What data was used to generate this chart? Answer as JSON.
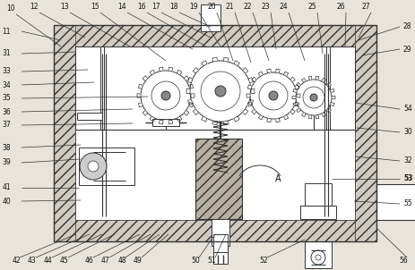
{
  "fig_width": 4.64,
  "fig_height": 3.02,
  "dpi": 100,
  "bg_color": "#e8e4dc",
  "line_color": "#333333",
  "label_color": "#111111",
  "fs": 5.5,
  "fw": "normal"
}
